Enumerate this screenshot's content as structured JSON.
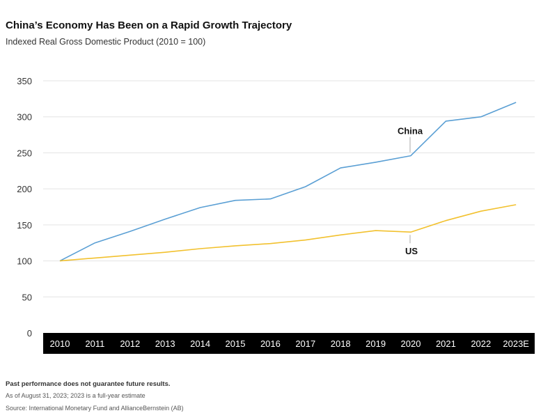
{
  "title": "China’s Economy Has Been on a Rapid Growth Trajectory",
  "subtitle": "Indexed Real Gross Domestic Product (2010 = 100)",
  "footnotes": {
    "disclaimer": "Past performance does not guarantee future results.",
    "asof": "As of August 31, 2023; 2023 is a full-year estimate",
    "source": "Source: International Monetary Fund and AllianceBernstein (AB)"
  },
  "colors": {
    "china": "#5a9fd4",
    "us": "#f2c12e",
    "axis_band": "#000000",
    "grid": "#e3e3e3"
  },
  "chart_data": {
    "type": "line",
    "title": "China’s Economy Has Been on a Rapid Growth Trajectory",
    "subtitle": "Indexed Real Gross Domestic Product (2010 = 100)",
    "x": [
      "2010",
      "2011",
      "2012",
      "2013",
      "2014",
      "2015",
      "2016",
      "2017",
      "2018",
      "2019",
      "2020",
      "2021",
      "2022",
      "2023E"
    ],
    "series": [
      {
        "name": "China",
        "values": [
          100,
          125,
          141,
          158,
          174,
          184,
          186,
          203,
          229,
          237,
          246,
          294,
          300,
          320
        ]
      },
      {
        "name": "US",
        "values": [
          100,
          104,
          108,
          112,
          117,
          121,
          124,
          129,
          136,
          142,
          140,
          156,
          169,
          178
        ]
      }
    ],
    "yticks": [
      0,
      50,
      100,
      150,
      200,
      250,
      300,
      350
    ],
    "ylim": [
      0,
      350
    ],
    "grid": true,
    "legend": "inline labels"
  }
}
